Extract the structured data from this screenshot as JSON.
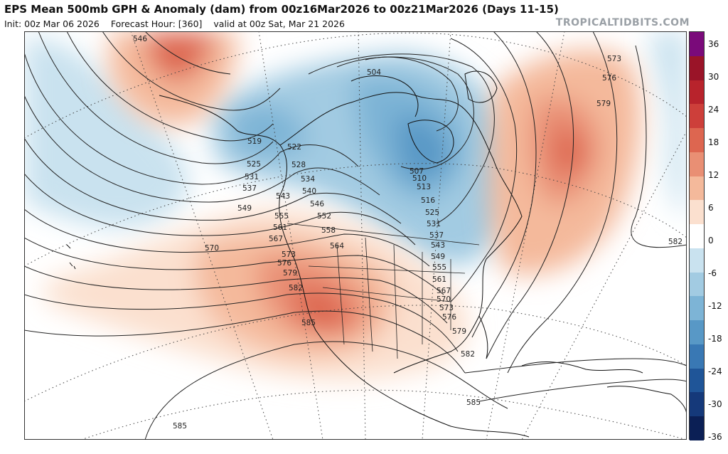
{
  "header": {
    "title": "EPS Mean 500mb GPH & Anomaly (dam) from 00z16Mar2026 to 00z21Mar2026 (Days 11-15)",
    "init": "Init: 00z Mar 06 2026",
    "forecast_hour": "Forecast Hour: [360]",
    "valid": "valid at 00z Sat, Mar 21 2026"
  },
  "watermark": "TROPICALTIDBITS.COM",
  "colorbar": {
    "labels": [
      "36",
      "30",
      "24",
      "18",
      "12",
      "6",
      "0",
      "-6",
      "-12",
      "-18",
      "-24",
      "-30",
      "-36"
    ],
    "colors": [
      "#7a0a7a",
      "#9a1428",
      "#b8232c",
      "#cd3f3a",
      "#dd6650",
      "#e98f74",
      "#f4b99b",
      "#fbe0cf",
      "#ffffff",
      "#c9e2ef",
      "#a2cbe2",
      "#7db4d6",
      "#5898c6",
      "#3978b4",
      "#1f5598",
      "#15397a",
      "#0b1f55"
    ]
  },
  "contour_labels": {
    "546": "546",
    "519": "519",
    "522": "522",
    "525": "525",
    "528": "528",
    "531": "531",
    "534": "534",
    "537": "537",
    "540": "540",
    "543": "543",
    "546b": "546",
    "549": "549",
    "552": "552",
    "555": "555",
    "558": "558",
    "561": "561",
    "564": "564",
    "567": "567",
    "570": "570",
    "573": "573",
    "576": "576",
    "579": "579",
    "582": "582",
    "585": "585",
    "504": "504",
    "507": "507",
    "510": "510",
    "513": "513",
    "516": "516",
    "525e": "525",
    "531e": "531",
    "537e": "537",
    "543e": "543",
    "549e": "549",
    "555e": "555",
    "561e": "561",
    "567e": "567",
    "570e": "570",
    "573e": "573",
    "576e": "576",
    "579e": "579",
    "582e": "582",
    "585e": "585",
    "585s": "585",
    "573ne": "573",
    "576ne": "576",
    "579ne": "579",
    "582ne": "582"
  }
}
